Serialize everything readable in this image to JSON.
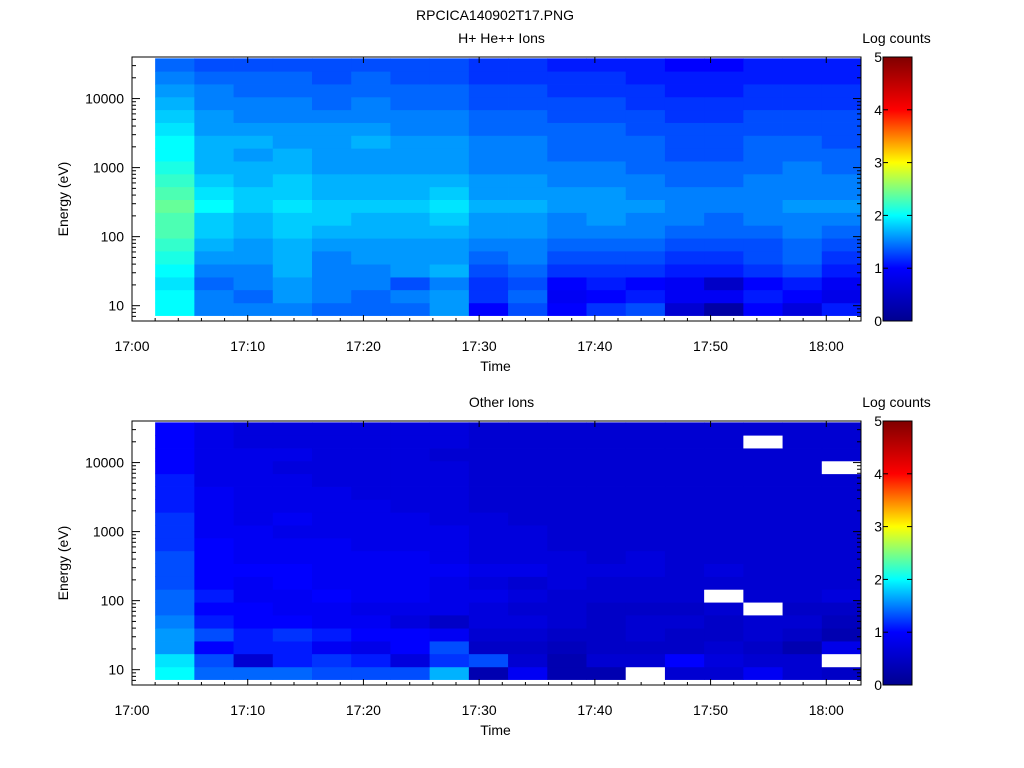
{
  "figure_title": "RPCICA140902T17.PNG",
  "colorbar_label": "Log counts",
  "colormap": [
    "#00008f",
    "#0000ff",
    "#00ffff",
    "#ffff00",
    "#ff0000",
    "#800000"
  ],
  "chart_data": [
    {
      "type": "heatmap",
      "title": "H+ He++ Ions",
      "xlabel": "Time",
      "ylabel": "Energy (eV)",
      "y_scale": "log",
      "ylim": [
        6,
        40000
      ],
      "xlim": [
        "17:00",
        "18:03"
      ],
      "x_ticks": [
        "17:00",
        "17:10",
        "17:20",
        "17:30",
        "17:40",
        "17:50",
        "18:00"
      ],
      "y_ticks": [
        "10",
        "100",
        "1000",
        "10000"
      ],
      "colorbar": {
        "label": "Log counts",
        "range": [
          0,
          5
        ],
        "ticks": [
          "0",
          "1",
          "2",
          "3",
          "4",
          "5"
        ]
      },
      "time_start": "17:02",
      "time_end": "18:03",
      "energy_bins": [
        7.2,
        11,
        17,
        26,
        40,
        62,
        95,
        146,
        224,
        344,
        528,
        810,
        1243,
        1907,
        2927,
        4492,
        6893,
        10578,
        16232,
        24909,
        38224
      ],
      "log_counts_rows_low_energy_first": [
        [
          2.0,
          1.5,
          1.5,
          1.5,
          1.4,
          1.4,
          1.4,
          1.6,
          1.0,
          1.3,
          1.0,
          1.2,
          1.3,
          0.6,
          0.2,
          1.0,
          0.7,
          1.1
        ],
        [
          2.0,
          1.5,
          1.4,
          1.6,
          1.5,
          1.4,
          1.5,
          1.6,
          1.2,
          1.4,
          0.9,
          1.0,
          1.1,
          0.9,
          0.9,
          1.1,
          1.0,
          0.8
        ],
        [
          1.9,
          1.4,
          1.5,
          1.6,
          1.5,
          1.5,
          1.3,
          1.5,
          1.2,
          1.3,
          1.0,
          1.1,
          1.0,
          0.9,
          0.5,
          1.0,
          1.1,
          0.9
        ],
        [
          2.0,
          1.5,
          1.5,
          1.7,
          1.5,
          1.5,
          1.6,
          1.7,
          1.3,
          1.4,
          1.2,
          1.2,
          1.2,
          1.1,
          1.1,
          1.2,
          1.3,
          1.1
        ],
        [
          2.1,
          1.6,
          1.6,
          1.7,
          1.5,
          1.6,
          1.6,
          1.6,
          1.4,
          1.5,
          1.3,
          1.3,
          1.3,
          1.2,
          1.2,
          1.3,
          1.4,
          1.2
        ],
        [
          2.2,
          1.7,
          1.6,
          1.7,
          1.6,
          1.6,
          1.6,
          1.6,
          1.5,
          1.5,
          1.4,
          1.4,
          1.4,
          1.3,
          1.3,
          1.3,
          1.4,
          1.3
        ],
        [
          2.3,
          1.8,
          1.7,
          1.8,
          1.7,
          1.7,
          1.7,
          1.7,
          1.6,
          1.6,
          1.5,
          1.5,
          1.5,
          1.4,
          1.4,
          1.4,
          1.5,
          1.4
        ],
        [
          2.3,
          1.8,
          1.7,
          1.8,
          1.8,
          1.7,
          1.7,
          1.8,
          1.6,
          1.6,
          1.5,
          1.6,
          1.5,
          1.5,
          1.4,
          1.5,
          1.5,
          1.5
        ],
        [
          2.4,
          2.0,
          1.8,
          1.9,
          1.8,
          1.8,
          1.8,
          1.9,
          1.7,
          1.7,
          1.6,
          1.6,
          1.6,
          1.5,
          1.5,
          1.5,
          1.6,
          1.6
        ],
        [
          2.3,
          1.9,
          1.8,
          1.8,
          1.7,
          1.7,
          1.7,
          1.8,
          1.6,
          1.6,
          1.6,
          1.6,
          1.5,
          1.5,
          1.5,
          1.5,
          1.5,
          1.5
        ],
        [
          2.2,
          1.8,
          1.7,
          1.8,
          1.7,
          1.7,
          1.7,
          1.7,
          1.6,
          1.6,
          1.5,
          1.5,
          1.5,
          1.4,
          1.4,
          1.5,
          1.5,
          1.5
        ],
        [
          2.1,
          1.7,
          1.7,
          1.7,
          1.6,
          1.6,
          1.6,
          1.6,
          1.5,
          1.5,
          1.5,
          1.5,
          1.4,
          1.4,
          1.4,
          1.4,
          1.5,
          1.4
        ],
        [
          2.0,
          1.7,
          1.6,
          1.7,
          1.6,
          1.6,
          1.6,
          1.6,
          1.5,
          1.5,
          1.4,
          1.4,
          1.4,
          1.3,
          1.3,
          1.4,
          1.4,
          1.4
        ],
        [
          2.0,
          1.7,
          1.7,
          1.6,
          1.6,
          1.7,
          1.6,
          1.6,
          1.5,
          1.5,
          1.4,
          1.4,
          1.4,
          1.3,
          1.3,
          1.4,
          1.4,
          1.3
        ],
        [
          1.9,
          1.6,
          1.6,
          1.6,
          1.6,
          1.6,
          1.5,
          1.5,
          1.4,
          1.4,
          1.4,
          1.4,
          1.3,
          1.3,
          1.3,
          1.3,
          1.3,
          1.3
        ],
        [
          1.8,
          1.6,
          1.5,
          1.5,
          1.5,
          1.5,
          1.5,
          1.5,
          1.4,
          1.4,
          1.3,
          1.3,
          1.3,
          1.2,
          1.2,
          1.3,
          1.3,
          1.3
        ],
        [
          1.7,
          1.5,
          1.5,
          1.5,
          1.4,
          1.5,
          1.4,
          1.4,
          1.3,
          1.3,
          1.3,
          1.3,
          1.2,
          1.2,
          1.2,
          1.2,
          1.2,
          1.2
        ],
        [
          1.6,
          1.5,
          1.4,
          1.4,
          1.4,
          1.4,
          1.4,
          1.4,
          1.3,
          1.3,
          1.2,
          1.2,
          1.2,
          1.1,
          1.1,
          1.2,
          1.2,
          1.2
        ],
        [
          1.5,
          1.4,
          1.4,
          1.4,
          1.3,
          1.4,
          1.3,
          1.3,
          1.2,
          1.2,
          1.2,
          1.2,
          1.1,
          1.1,
          1.1,
          1.1,
          1.1,
          1.1
        ],
        [
          1.4,
          1.3,
          1.3,
          1.3,
          1.3,
          1.3,
          1.3,
          1.3,
          1.2,
          1.2,
          1.1,
          1.1,
          1.1,
          1.0,
          1.0,
          1.1,
          1.1,
          1.1
        ]
      ]
    },
    {
      "type": "heatmap",
      "title": "Other Ions",
      "xlabel": "Time",
      "ylabel": "Energy (eV)",
      "y_scale": "log",
      "ylim": [
        6,
        40000
      ],
      "xlim": [
        "17:00",
        "18:03"
      ],
      "x_ticks": [
        "17:00",
        "17:10",
        "17:20",
        "17:30",
        "17:40",
        "17:50",
        "18:00"
      ],
      "y_ticks": [
        "10",
        "100",
        "1000",
        "10000"
      ],
      "colorbar": {
        "label": "Log counts",
        "range": [
          0,
          5
        ],
        "ticks": [
          "0",
          "1",
          "2",
          "3",
          "4",
          "5"
        ]
      },
      "time_start": "17:02",
      "time_end": "18:03",
      "energy_bins": [
        7.2,
        11,
        17,
        26,
        40,
        62,
        95,
        146,
        224,
        344,
        528,
        810,
        1243,
        1907,
        2927,
        4492,
        6893,
        10578,
        16232,
        24909,
        38224
      ],
      "log_counts_rows_low_energy_first": [
        [
          2.0,
          1.4,
          1.4,
          1.4,
          1.3,
          1.3,
          1.3,
          1.7,
          0.3,
          0.9,
          0.3,
          0.3,
          null,
          0.6,
          0.6,
          0.9,
          0.6,
          0.5
        ],
        [
          1.9,
          1.3,
          0.6,
          1.1,
          1.2,
          1.1,
          0.7,
          1.2,
          1.3,
          0.6,
          0.3,
          0.6,
          0.6,
          1.0,
          0.7,
          0.6,
          0.6,
          null
        ],
        [
          1.6,
          1.0,
          1.1,
          1.1,
          0.9,
          0.8,
          1.0,
          1.3,
          0.5,
          0.5,
          0.4,
          0.5,
          0.5,
          0.5,
          0.6,
          0.5,
          0.3,
          0.8
        ],
        [
          1.6,
          1.3,
          1.1,
          1.2,
          1.1,
          1.0,
          1.0,
          0.9,
          0.6,
          0.6,
          0.5,
          0.5,
          0.6,
          0.5,
          0.5,
          0.6,
          0.5,
          0.3
        ],
        [
          1.5,
          1.1,
          1.0,
          1.0,
          0.9,
          0.9,
          0.7,
          0.5,
          0.7,
          0.7,
          0.6,
          0.5,
          0.6,
          0.6,
          0.5,
          0.6,
          0.6,
          0.4
        ],
        [
          1.4,
          1.0,
          1.0,
          0.9,
          0.9,
          0.8,
          0.8,
          0.8,
          0.7,
          0.6,
          0.6,
          0.5,
          0.5,
          0.5,
          0.6,
          null,
          0.5,
          0.5
        ],
        [
          1.4,
          1.1,
          0.9,
          0.9,
          1.0,
          0.9,
          0.9,
          0.8,
          0.8,
          0.7,
          0.6,
          0.6,
          0.6,
          0.6,
          null,
          0.6,
          0.6,
          0.7
        ],
        [
          1.3,
          1.0,
          0.9,
          1.0,
          0.9,
          0.9,
          0.9,
          0.8,
          0.7,
          0.6,
          0.7,
          0.6,
          0.6,
          0.6,
          0.6,
          0.6,
          0.6,
          0.6
        ],
        [
          1.3,
          1.0,
          1.0,
          1.0,
          0.9,
          0.9,
          0.9,
          0.9,
          0.8,
          0.8,
          0.7,
          0.7,
          0.7,
          0.6,
          0.7,
          0.6,
          0.6,
          0.6
        ],
        [
          1.3,
          1.0,
          0.9,
          0.9,
          0.9,
          0.9,
          0.9,
          0.8,
          0.7,
          0.7,
          0.7,
          0.6,
          0.7,
          0.6,
          0.6,
          0.6,
          0.6,
          0.6
        ],
        [
          1.2,
          1.0,
          0.9,
          0.9,
          0.9,
          0.8,
          0.8,
          0.8,
          0.7,
          0.7,
          0.6,
          0.6,
          0.6,
          0.6,
          0.6,
          0.6,
          0.6,
          0.6
        ],
        [
          1.2,
          0.9,
          0.9,
          0.8,
          0.8,
          0.8,
          0.8,
          0.8,
          0.7,
          0.7,
          0.6,
          0.6,
          0.6,
          0.6,
          0.6,
          0.6,
          0.6,
          0.6
        ],
        [
          1.2,
          0.9,
          0.8,
          0.9,
          0.8,
          0.8,
          0.8,
          0.7,
          0.7,
          0.6,
          0.6,
          0.6,
          0.6,
          0.6,
          0.6,
          0.6,
          0.6,
          0.6
        ],
        [
          1.1,
          0.9,
          0.8,
          0.8,
          0.8,
          0.8,
          0.7,
          0.7,
          0.6,
          0.6,
          0.6,
          0.6,
          0.6,
          0.6,
          0.6,
          0.6,
          0.6,
          0.6
        ],
        [
          1.1,
          0.9,
          0.8,
          0.8,
          0.8,
          0.7,
          0.7,
          0.7,
          0.6,
          0.6,
          0.6,
          0.6,
          0.6,
          0.6,
          0.6,
          0.6,
          0.6,
          0.6
        ],
        [
          1.1,
          0.8,
          0.8,
          0.8,
          0.7,
          0.7,
          0.7,
          0.7,
          0.6,
          0.6,
          0.6,
          0.6,
          0.6,
          0.6,
          0.6,
          0.6,
          0.6,
          0.6
        ],
        [
          1.0,
          0.8,
          0.8,
          0.7,
          0.7,
          0.7,
          0.7,
          0.7,
          0.6,
          0.6,
          0.6,
          0.6,
          0.6,
          0.6,
          0.6,
          0.6,
          0.6,
          null
        ],
        [
          1.0,
          0.8,
          0.8,
          0.8,
          0.7,
          0.7,
          0.7,
          0.6,
          0.6,
          0.6,
          0.6,
          0.6,
          0.6,
          0.6,
          0.6,
          0.6,
          0.6,
          0.6
        ],
        [
          1.0,
          0.8,
          0.7,
          0.7,
          0.7,
          0.7,
          0.7,
          0.7,
          0.6,
          0.6,
          0.6,
          0.6,
          0.6,
          0.6,
          0.6,
          null,
          0.6,
          0.6
        ],
        [
          1.0,
          0.8,
          0.7,
          0.7,
          0.7,
          0.7,
          0.7,
          0.7,
          0.6,
          0.6,
          0.6,
          0.6,
          0.6,
          0.6,
          0.6,
          0.6,
          0.6,
          0.6
        ]
      ]
    }
  ]
}
